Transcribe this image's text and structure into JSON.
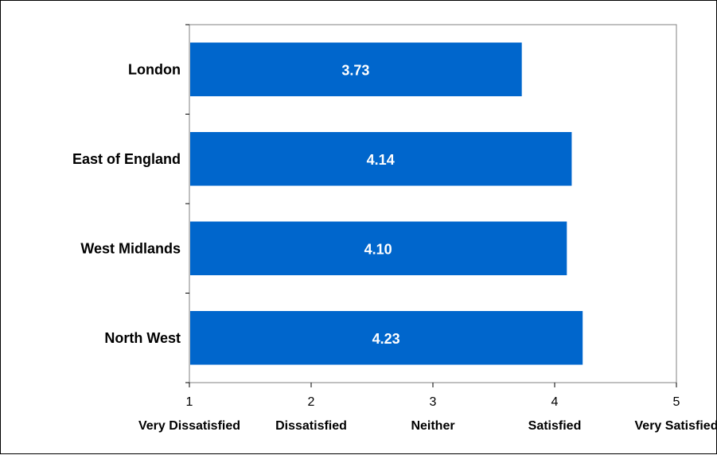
{
  "chart_data": {
    "type": "bar",
    "orientation": "horizontal",
    "categories": [
      "London",
      "East of England",
      "West Midlands",
      "North West"
    ],
    "values": [
      3.73,
      4.14,
      4.1,
      4.23
    ],
    "value_labels": [
      "3.73",
      "4.14",
      "4.10",
      "4.23"
    ],
    "xlim": [
      1,
      5
    ],
    "xticks": [
      1,
      2,
      3,
      4,
      5
    ],
    "xtick_labels": [
      "1",
      "2",
      "3",
      "4",
      "5"
    ],
    "xtick_words": [
      "Very Dissatisfied",
      "Dissatisfied",
      "Neither",
      "Satisfied",
      "Very Satisfied"
    ],
    "bar_color": "#0066CC",
    "grid": false,
    "legend": "none"
  }
}
